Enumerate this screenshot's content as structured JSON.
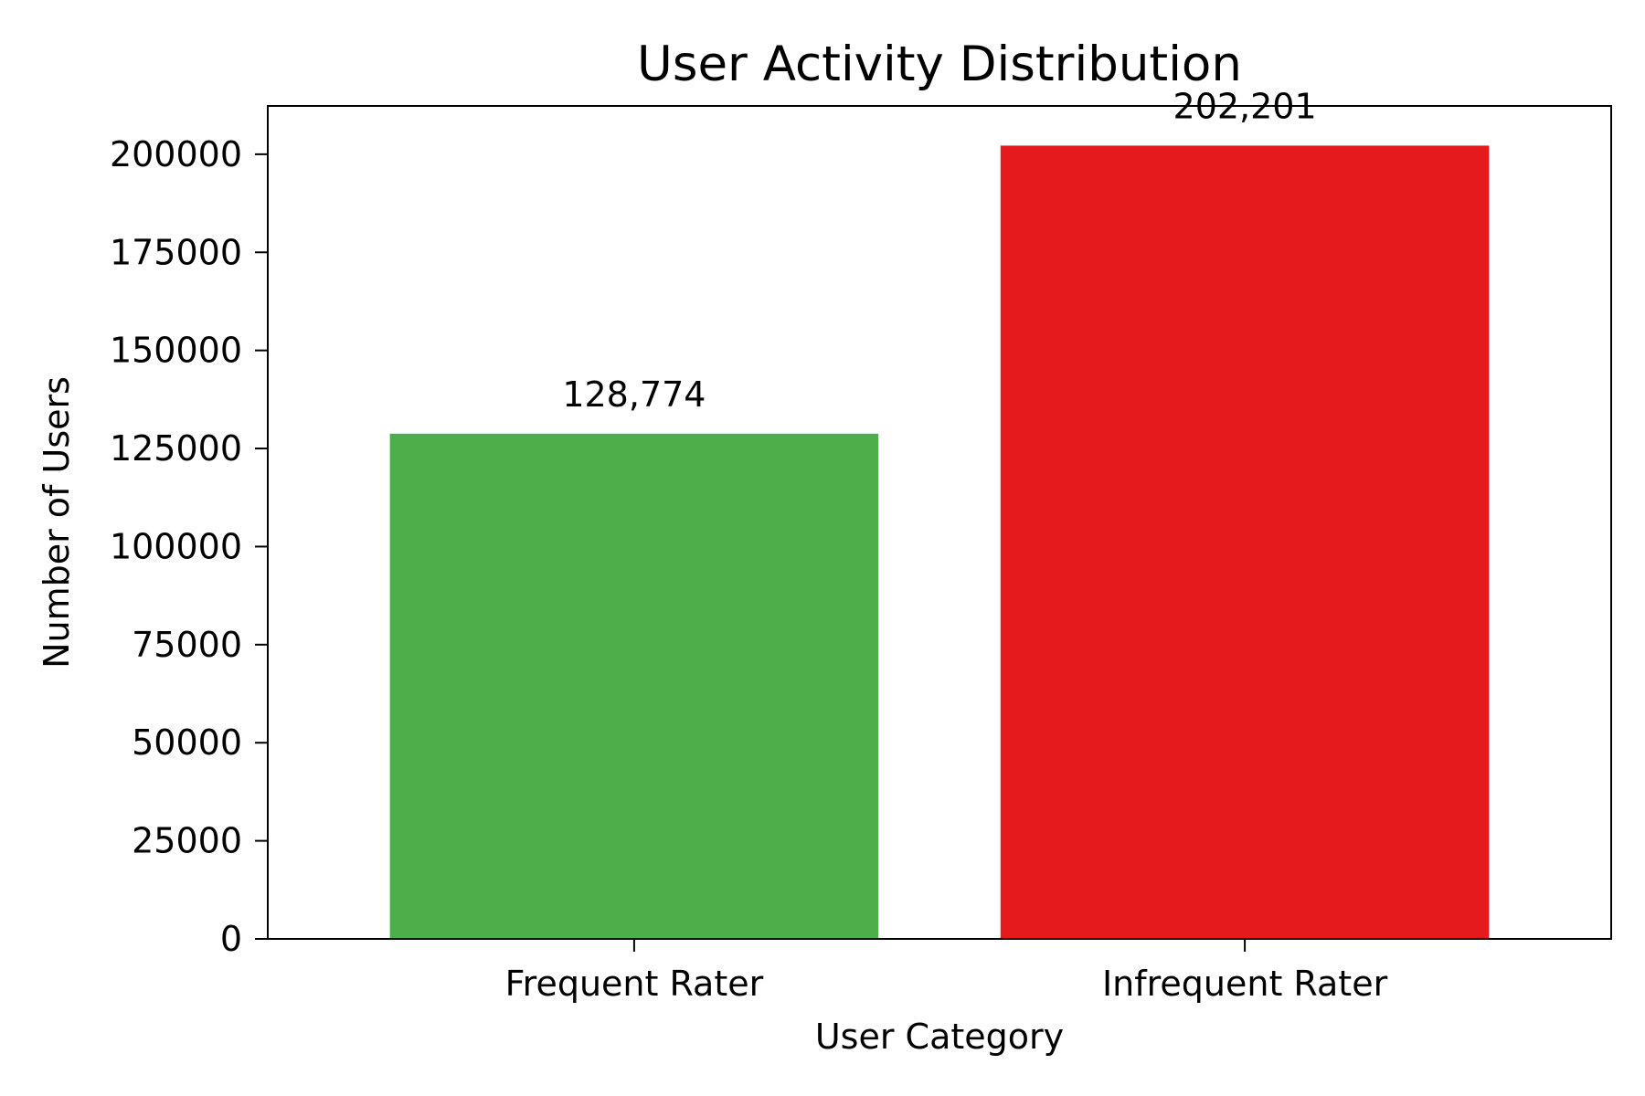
{
  "chart_data": {
    "type": "bar",
    "title": "User Activity Distribution",
    "xlabel": "User Category",
    "ylabel": "Number of Users",
    "categories": [
      "Frequent Rater",
      "Infrequent Rater"
    ],
    "values": [
      128774,
      202201
    ],
    "value_labels": [
      "128,774",
      "202,201"
    ],
    "colors": [
      "#4daf4a",
      "#e41a1c"
    ],
    "ylim": [
      0,
      212311
    ],
    "yticks": [
      0,
      25000,
      50000,
      75000,
      100000,
      125000,
      150000,
      175000,
      200000
    ],
    "ytick_labels": [
      "0",
      "25000",
      "50000",
      "75000",
      "100000",
      "125000",
      "150000",
      "175000",
      "200000"
    ],
    "grid": false,
    "legend": "none"
  }
}
